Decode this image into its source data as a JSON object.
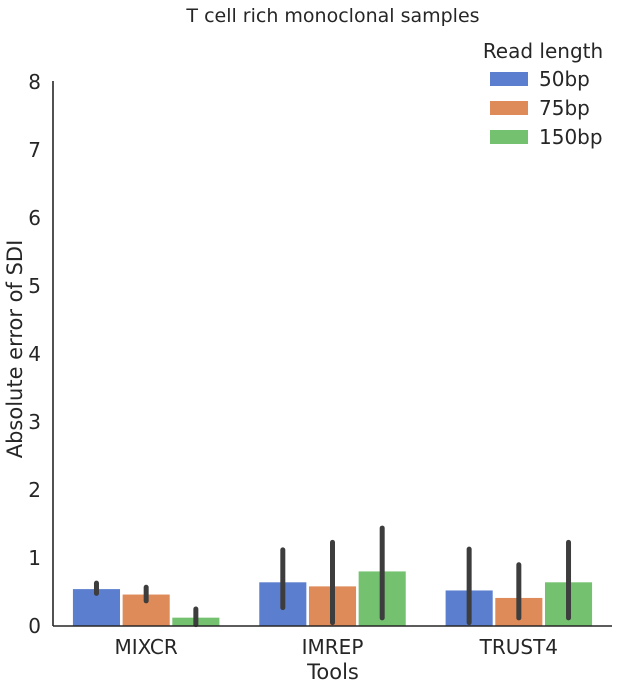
{
  "chart_data": {
    "type": "bar",
    "title": "T cell rich monoclonal samples",
    "xlabel": "Tools",
    "ylabel": "Absolute error of SDI",
    "categories": [
      "MIXCR",
      "IMREP",
      "TRUST4"
    ],
    "ylim": [
      0,
      8
    ],
    "yticks": [
      "0",
      "1",
      "2",
      "3",
      "4",
      "5",
      "6",
      "7",
      "8"
    ],
    "grid": false,
    "legend": {
      "title": "Read length",
      "placement": "top-right"
    },
    "series": [
      {
        "name": "50bp",
        "color": "#5B7FCE",
        "values": [
          0.55,
          0.65,
          0.53
        ],
        "err_low": [
          0.48,
          0.27,
          0.05
        ],
        "err_high": [
          0.63,
          1.12,
          1.13
        ]
      },
      {
        "name": "75bp",
        "color": "#DE8A59",
        "values": [
          0.47,
          0.59,
          0.42
        ],
        "err_low": [
          0.37,
          0.05,
          0.12
        ],
        "err_high": [
          0.57,
          1.23,
          0.9
        ]
      },
      {
        "name": "150bp",
        "color": "#74C26F",
        "values": [
          0.13,
          0.81,
          0.65
        ],
        "err_low": [
          0.02,
          0.12,
          0.12
        ],
        "err_high": [
          0.25,
          1.44,
          1.23
        ]
      }
    ]
  }
}
